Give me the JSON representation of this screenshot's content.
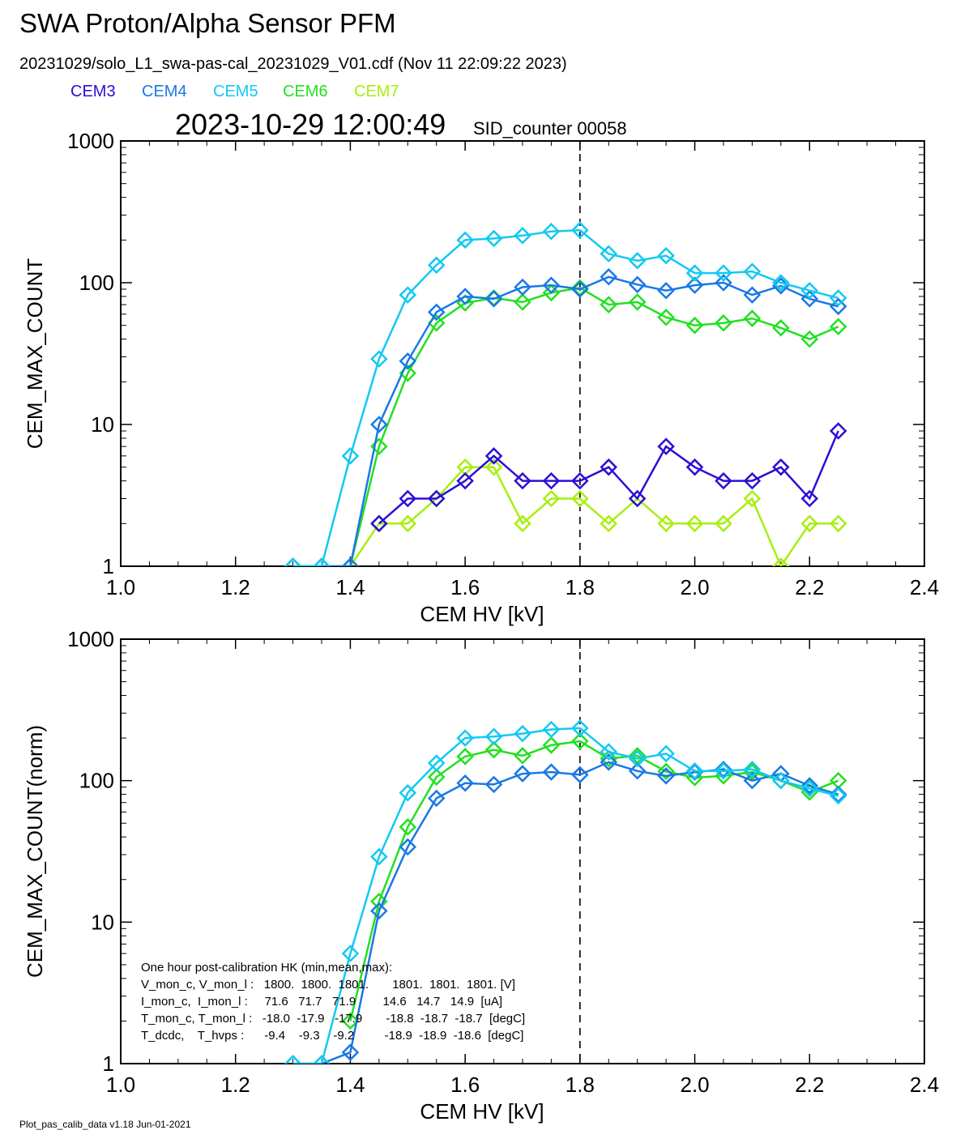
{
  "header": {
    "title": "SWA Proton/Alpha Sensor PFM",
    "file_line": "20231029/solo_L1_swa-pas-cal_20231029_V01.cdf  (Nov 11 22:09:22 2023)",
    "timestamp": "2023-10-29 12:00:49",
    "sid": "SID_counter 00058"
  },
  "legend": [
    {
      "name": "CEM3",
      "color": "#2c0fd6"
    },
    {
      "name": "CEM4",
      "color": "#1a78e6"
    },
    {
      "name": "CEM5",
      "color": "#12c9f2"
    },
    {
      "name": "CEM6",
      "color": "#22e020"
    },
    {
      "name": "CEM7",
      "color": "#a8ef10"
    }
  ],
  "footer": "Plot_pas_calib_data v1.18 Jun-01-2021",
  "hk": {
    "title": "One hour post-calibration HK (min,mean,max):",
    "lines": [
      "V_mon_c, V_mon_l :   1800.  1800.  1801.       1801.  1801.  1801. [V]",
      "I_mon_c,  I_mon_l :     71.6   71.7   71.9        14.6   14.7   14.9  [uA]",
      "T_mon_c, T_mon_l :   -18.0  -17.9   -17.9       -18.8  -18.7  -18.7  [degC]",
      "T_dcdc,    T_hvps :      -9.4    -9.3    -9.2         -18.9  -18.9  -18.6  [degC]"
    ]
  },
  "chart_data": [
    {
      "type": "line",
      "xlabel": "CEM HV [kV]",
      "ylabel": "CEM_MAX_COUNT",
      "xlim": [
        1.0,
        2.4
      ],
      "ylim": [
        1,
        1000
      ],
      "yscale": "log",
      "xticks": [
        "1.0",
        "1.2",
        "1.4",
        "1.6",
        "1.8",
        "2.0",
        "2.2",
        "2.4"
      ],
      "yticks": [
        "1",
        "10",
        "100",
        "1000"
      ],
      "vline_x": 1.8,
      "x": [
        1.3,
        1.35,
        1.4,
        1.45,
        1.5,
        1.55,
        1.6,
        1.65,
        1.7,
        1.75,
        1.8,
        1.85,
        1.9,
        1.95,
        2.0,
        2.05,
        2.1,
        2.15,
        2.2,
        2.25
      ],
      "series": [
        {
          "name": "CEM7",
          "color": "#a8ef10",
          "values": [
            1,
            1,
            1,
            2,
            2,
            3,
            5,
            5,
            2,
            3,
            3,
            2,
            3,
            2,
            2,
            2,
            3,
            1,
            2,
            2
          ]
        },
        {
          "name": "CEM3",
          "color": "#2c0fd6",
          "values": [
            null,
            null,
            null,
            2,
            3,
            3,
            4,
            6,
            4,
            4,
            4,
            5,
            3,
            7,
            5,
            4,
            4,
            5,
            3,
            9
          ]
        },
        {
          "name": "CEM6",
          "color": "#22e020",
          "values": [
            1,
            1,
            1,
            7,
            23,
            52,
            72,
            78,
            73,
            85,
            92,
            70,
            73,
            57,
            50,
            52,
            56,
            48,
            40,
            49
          ]
        },
        {
          "name": "CEM4",
          "color": "#1a78e6",
          "values": [
            1,
            1,
            1,
            10,
            28,
            62,
            80,
            77,
            93,
            96,
            90,
            110,
            97,
            88,
            96,
            100,
            82,
            95,
            77,
            68
          ]
        },
        {
          "name": "CEM5",
          "color": "#12c9f2",
          "values": [
            1,
            1,
            6,
            29,
            82,
            133,
            200,
            205,
            215,
            230,
            235,
            160,
            143,
            155,
            117,
            117,
            120,
            100,
            88,
            78
          ]
        }
      ]
    },
    {
      "type": "line",
      "xlabel": "CEM HV [kV]",
      "ylabel": "CEM_MAX_COUNT(norm)",
      "xlim": [
        1.0,
        2.4
      ],
      "ylim": [
        1,
        1000
      ],
      "yscale": "log",
      "xticks": [
        "1.0",
        "1.2",
        "1.4",
        "1.6",
        "1.8",
        "2.0",
        "2.2",
        "2.4"
      ],
      "yticks": [
        "1",
        "10",
        "100",
        "1000"
      ],
      "vline_x": 1.8,
      "x": [
        1.3,
        1.35,
        1.4,
        1.45,
        1.5,
        1.55,
        1.6,
        1.65,
        1.7,
        1.75,
        1.8,
        1.85,
        1.9,
        1.95,
        2.0,
        2.05,
        2.1,
        2.15,
        2.2,
        2.25
      ],
      "series": [
        {
          "name": "CEM6",
          "color": "#22e020",
          "values": [
            null,
            null,
            2,
            14,
            47,
            106,
            148,
            165,
            150,
            178,
            190,
            143,
            150,
            116,
            105,
            108,
            115,
            100,
            83,
            100
          ]
        },
        {
          "name": "CEM4",
          "color": "#1a78e6",
          "values": [
            1,
            1,
            1.2,
            12,
            34,
            75,
            96,
            94,
            112,
            115,
            110,
            135,
            117,
            108,
            115,
            120,
            100,
            112,
            92,
            80
          ]
        },
        {
          "name": "CEM5",
          "color": "#12c9f2",
          "values": [
            1,
            1,
            6,
            29,
            82,
            133,
            200,
            205,
            215,
            230,
            235,
            160,
            143,
            155,
            117,
            117,
            120,
            100,
            88,
            78
          ]
        }
      ]
    }
  ]
}
